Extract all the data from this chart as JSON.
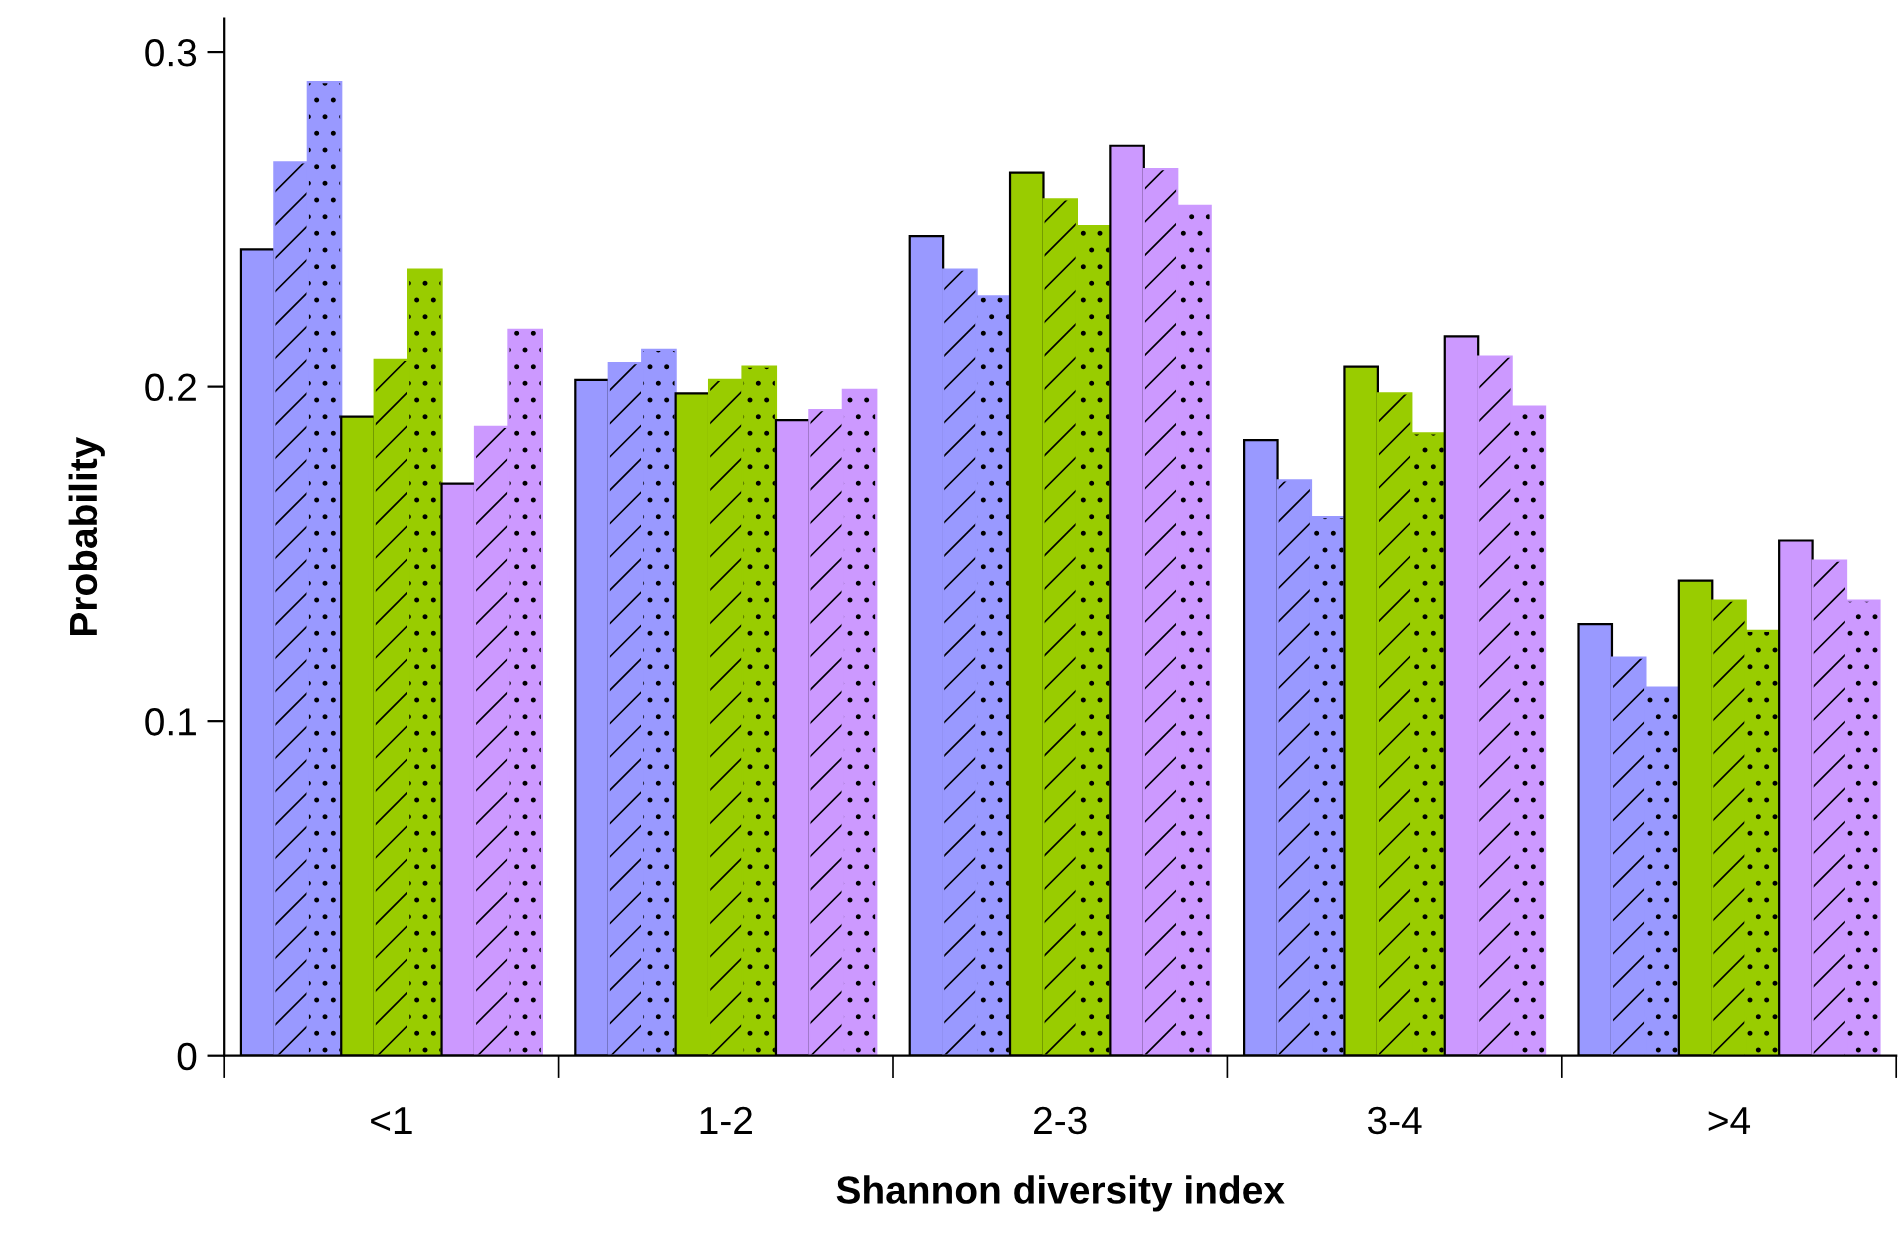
{
  "chart_data": {
    "type": "bar",
    "xlabel": "Shannon diversity index",
    "ylabel": "Probability",
    "categories": [
      "<1",
      "1-2",
      "2-3",
      "3-4",
      ">4"
    ],
    "series": [
      {
        "color": "#9999ff",
        "values": [
          0.241,
          0.202,
          0.245,
          0.184,
          0.129
        ]
      },
      {
        "color": "#9999ff",
        "values": [
          0.267,
          0.207,
          0.235,
          0.172,
          0.119
        ]
      },
      {
        "color": "#9999ff",
        "values": [
          0.291,
          0.211,
          0.227,
          0.161,
          0.11
        ]
      },
      {
        "color": "#99cc00",
        "values": [
          0.191,
          0.198,
          0.264,
          0.206,
          0.142
        ]
      },
      {
        "color": "#99cc00",
        "values": [
          0.208,
          0.202,
          0.256,
          0.198,
          0.136
        ]
      },
      {
        "color": "#99cc00",
        "values": [
          0.235,
          0.206,
          0.248,
          0.186,
          0.127
        ]
      },
      {
        "color": "#cc99ff",
        "values": [
          0.171,
          0.19,
          0.272,
          0.215,
          0.154
        ]
      },
      {
        "color": "#cc99ff",
        "values": [
          0.188,
          0.193,
          0.265,
          0.209,
          0.148
        ]
      },
      {
        "color": "#cc99ff",
        "values": [
          0.217,
          0.199,
          0.254,
          0.194,
          0.136
        ]
      }
    ],
    "ylim": [
      0,
      0.31
    ],
    "yticks": [
      0,
      0.1,
      0.2,
      0.3
    ],
    "grid": false,
    "legend": false
  }
}
